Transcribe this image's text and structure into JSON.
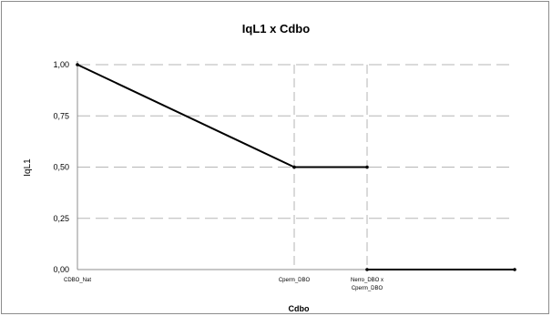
{
  "chart_data": {
    "type": "line",
    "title": "IqL1 x Cdbo",
    "xlabel": "Cdbo",
    "ylabel": "IqL1",
    "categories": [
      "CDBO_Nat",
      "Cperm_DBO",
      "Nerro_DBO x Cperm_DBO"
    ],
    "y_ticks": [
      "0,00",
      "0,25",
      "0,50",
      "0,75",
      "1,00"
    ],
    "ylim": [
      0,
      1
    ],
    "grid": true,
    "series": [
      {
        "x": [
          "CDBO_Nat",
          "Cperm_DBO"
        ],
        "y": [
          1.0,
          0.5
        ]
      },
      {
        "x": [
          "Cperm_DBO",
          "Nerro_DBO x Cperm_DBO"
        ],
        "y": [
          0.5,
          0.5
        ]
      },
      {
        "x": [
          "Nerro_DBO x Cperm_DBO",
          "end"
        ],
        "y": [
          0.0,
          0.0
        ]
      }
    ]
  }
}
